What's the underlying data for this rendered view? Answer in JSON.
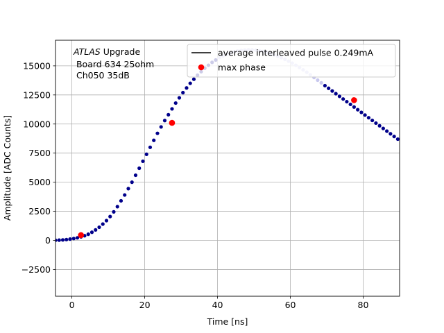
{
  "chart_data": {
    "type": "scatter",
    "title": "",
    "xlabel": "Time [ns]",
    "ylabel": "Amplitude [ADC Counts]",
    "xlim": [
      -4.5,
      90
    ],
    "ylim": [
      -4800,
      17200
    ],
    "xticks": [
      0,
      20,
      40,
      60,
      80
    ],
    "yticks": [
      -2500,
      0,
      2500,
      5000,
      7500,
      10000,
      12500,
      15000
    ],
    "ytick_labels": [
      "−2500",
      "0",
      "2500",
      "5000",
      "7500",
      "10000",
      "12500",
      "15000"
    ],
    "grid": true,
    "annotation": {
      "line1_italic": "ATLAS",
      "line1_rest": " Upgrade",
      "line2": " Board 634 25ohm",
      "line3": " Ch050 35dB"
    },
    "legend": {
      "placement": "top-right",
      "entries": [
        {
          "label": "average interleaved pulse 0.249mA",
          "marker": "line",
          "color": "#000000"
        },
        {
          "label": "max phase",
          "marker": "circle",
          "color": "#ff0000"
        }
      ]
    },
    "pulse_points": {
      "name": "average interleaved pulse 0.249mA",
      "color": "#00008b",
      "x": [
        -4.5,
        -3.5,
        -2.5,
        -1.5,
        -0.5,
        0.5,
        1.5,
        2.5,
        3.5,
        4.5,
        5.5,
        6.5,
        7.5,
        8.5,
        9.5,
        10.5,
        11.5,
        12.5,
        13.5,
        14.5,
        15.5,
        16.5,
        17.5,
        18.5,
        19.5,
        20.5,
        21.5,
        22.5,
        23.5,
        24.5,
        25.5,
        26.5,
        27.5,
        28.5,
        29.5,
        30.5,
        31.5,
        32.5,
        33.5,
        34.5,
        35.5,
        36.5,
        37.5,
        38.5,
        39.5,
        40.5,
        41.5,
        42.5,
        43.5,
        44.5,
        45.5,
        46.5,
        47.5,
        48.5,
        49.5,
        50.5,
        51.5,
        52.5,
        53.5,
        54.5,
        55.5,
        56.5,
        57.5,
        58.5,
        59.5,
        60.5,
        61.5,
        62.5,
        63.5,
        64.5,
        65.5,
        66.5,
        67.5,
        68.5,
        69.5,
        70.5,
        71.5,
        72.5,
        73.5,
        74.5,
        75.5,
        76.5,
        77.5,
        78.5,
        79.5,
        80.5,
        81.5,
        82.5,
        83.5,
        84.5,
        85.5,
        86.5,
        87.5,
        88.5,
        89.5
      ],
      "y": [
        10,
        20,
        40,
        70,
        110,
        160,
        220,
        300,
        400,
        530,
        700,
        900,
        1130,
        1400,
        1700,
        2050,
        2450,
        2900,
        3400,
        3900,
        4450,
        5000,
        5600,
        6200,
        6800,
        7400,
        8000,
        8600,
        9200,
        9750,
        10300,
        10800,
        11300,
        11800,
        12250,
        12700,
        13100,
        13500,
        13850,
        14200,
        14500,
        14800,
        15050,
        15300,
        15500,
        15700,
        15850,
        16000,
        16100,
        16200,
        16280,
        16340,
        16370,
        16390,
        16380,
        16350,
        16300,
        16230,
        16150,
        16050,
        15950,
        15830,
        15700,
        15560,
        15400,
        15230,
        15050,
        14860,
        14660,
        14450,
        14230,
        14000,
        13770,
        13540,
        13300,
        13070,
        12840,
        12610,
        12380,
        12150,
        11920,
        11690,
        11460,
        11230,
        11000,
        10770,
        10540,
        10310,
        10080,
        9850,
        9620,
        9390,
        9160,
        8930,
        8700
      ],
      "faded_color": "#c8c8ee",
      "faded_x_range": [
        40,
        69
      ]
    },
    "max_phase_points": {
      "name": "max phase",
      "color": "#ff0000",
      "x": [
        2.5,
        27.5,
        77.5
      ],
      "y": [
        450,
        10100,
        12050
      ]
    }
  }
}
